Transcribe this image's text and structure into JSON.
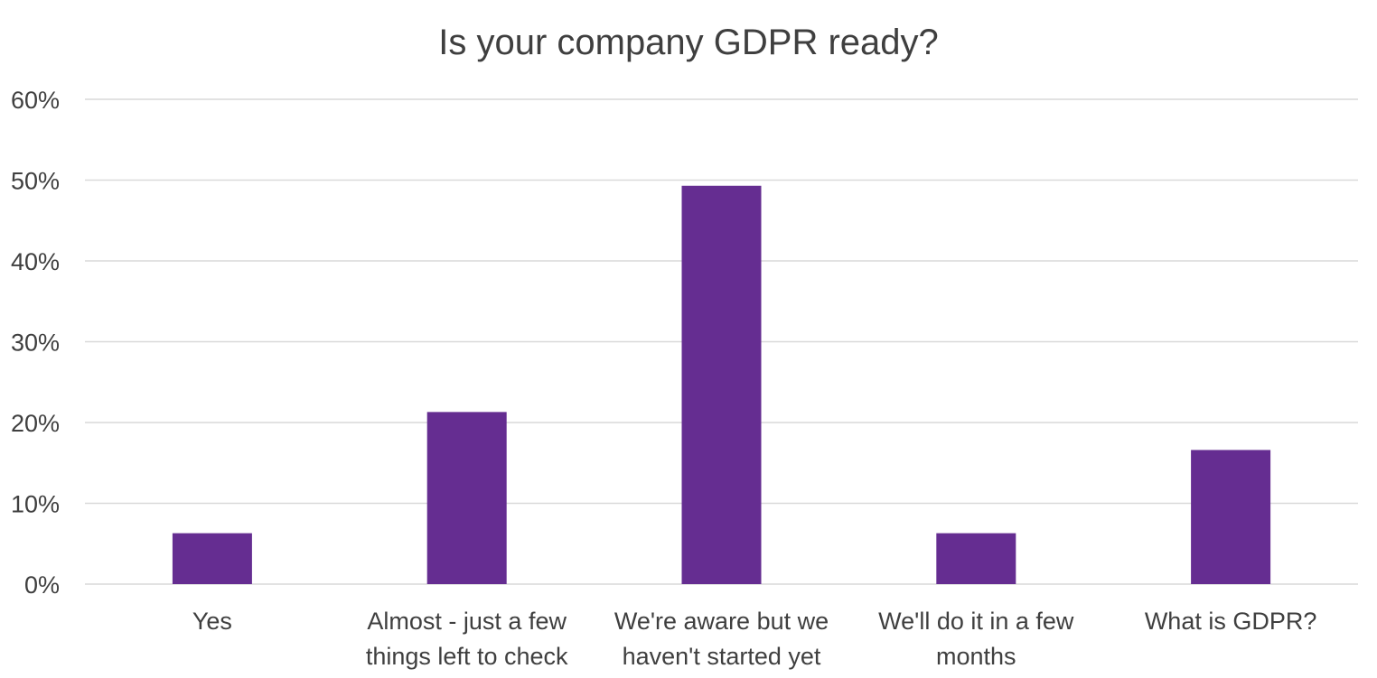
{
  "chart_data": {
    "type": "bar",
    "title": "Is your company GDPR ready?",
    "xlabel": "",
    "ylabel": "",
    "categories": [
      [
        "Yes"
      ],
      [
        "Almost - just a few",
        "things left to check"
      ],
      [
        "We're aware but we",
        "haven't started yet"
      ],
      [
        "We'll do it in a few",
        "months"
      ],
      [
        "What is GDPR?"
      ]
    ],
    "values": [
      6.3,
      21.3,
      49.3,
      6.3,
      16.6
    ],
    "value_unit": "%",
    "ylim": [
      0,
      60
    ],
    "yticks": [
      0,
      10,
      20,
      30,
      40,
      50,
      60
    ],
    "ytick_labels": [
      "0%",
      "10%",
      "20%",
      "30%",
      "40%",
      "50%",
      "60%"
    ],
    "bar_color": "#652d91",
    "grid": true,
    "legend": "none"
  }
}
